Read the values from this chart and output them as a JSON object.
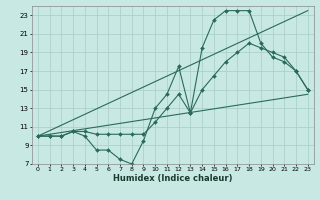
{
  "xlabel": "Humidex (Indice chaleur)",
  "bg_color": "#c8e8e4",
  "grid_color": "#a8ccc8",
  "line_color": "#2a6a5a",
  "xlim": [
    -0.5,
    23.5
  ],
  "ylim": [
    7,
    24
  ],
  "xtick_vals": [
    0,
    1,
    2,
    3,
    4,
    5,
    6,
    7,
    8,
    9,
    10,
    11,
    12,
    13,
    14,
    15,
    16,
    17,
    18,
    19,
    20,
    21,
    22,
    23
  ],
  "ytick_vals": [
    7,
    9,
    11,
    13,
    15,
    17,
    19,
    21,
    23
  ],
  "series": [
    {
      "x": [
        0,
        1,
        2,
        3,
        4,
        5,
        6,
        7,
        8,
        9,
        10,
        11,
        12,
        13,
        14,
        15,
        16,
        17,
        18,
        19,
        20,
        21,
        22,
        23
      ],
      "y": [
        10,
        10,
        10,
        10.5,
        10,
        8.5,
        8.5,
        7.5,
        7,
        9.5,
        13,
        14.5,
        17.5,
        12.5,
        19.5,
        22.5,
        23.5,
        23.5,
        23.5,
        20,
        18.5,
        18,
        17,
        15
      ],
      "has_markers": true
    },
    {
      "x": [
        0,
        1,
        2,
        3,
        4,
        5,
        6,
        7,
        8,
        9,
        10,
        11,
        12,
        13,
        14,
        15,
        16,
        17,
        18,
        19,
        20,
        21,
        22,
        23
      ],
      "y": [
        10,
        10,
        10,
        10.5,
        10.5,
        10.2,
        10.2,
        10.2,
        10.2,
        10.2,
        11.5,
        13,
        14.5,
        12.5,
        15,
        16.5,
        18,
        19,
        20,
        19.5,
        19,
        18.5,
        17,
        15
      ],
      "has_markers": true
    },
    {
      "x": [
        0,
        23
      ],
      "y": [
        10,
        14.5
      ],
      "has_markers": false
    },
    {
      "x": [
        0,
        23
      ],
      "y": [
        10,
        23.5
      ],
      "has_markers": false
    }
  ]
}
